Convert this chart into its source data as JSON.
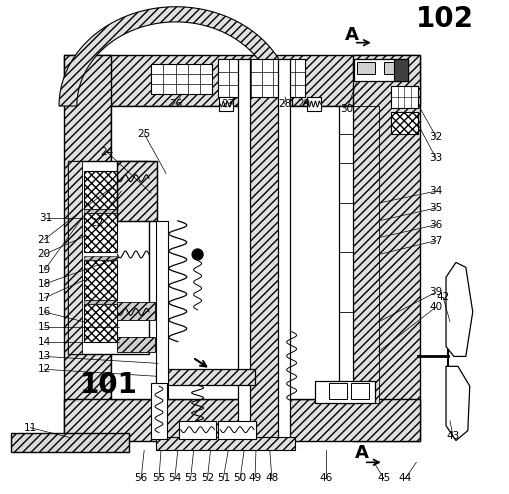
{
  "bg_color": "#ffffff",
  "line_color": "#000000",
  "figsize": [
    5.1,
    4.94
  ],
  "dpi": 100,
  "hatch_diagonal": "////",
  "hatch_cross": "xxxx",
  "gray_light": "#d8d8d8",
  "gray_mid": "#c0c0c0"
}
